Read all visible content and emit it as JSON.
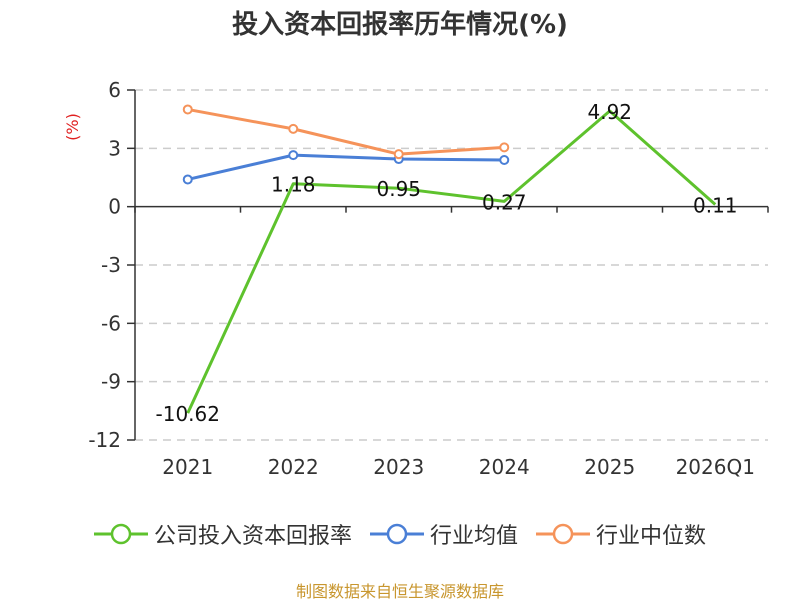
{
  "title": "投入资本回报率历年情况(%)",
  "source": "制图数据来自恒生聚源数据库",
  "chart_data": {
    "type": "line",
    "title": "投入资本回报率历年情况(%)",
    "ylabel": "(%)",
    "categories": [
      "2021",
      "2022",
      "2023",
      "2024",
      "2025",
      "2026Q1"
    ],
    "ylim": [
      -12,
      6
    ],
    "yticks": [
      6,
      3,
      0,
      -3,
      -6,
      -9,
      -12
    ],
    "grid": true,
    "legend_position": "bottom",
    "series": [
      {
        "name": "公司投入资本回报率",
        "color": "#5ec22d",
        "values": [
          -10.62,
          1.18,
          0.95,
          0.27,
          4.92,
          0.11
        ],
        "labels": [
          "-10.62",
          "1.18",
          "0.95",
          "0.27",
          "4.92",
          "0.11"
        ],
        "show_markers": false
      },
      {
        "name": "行业均值",
        "color": "#4a7fd6",
        "values": [
          1.4,
          2.65,
          2.45,
          2.4,
          null,
          null
        ],
        "show_markers": true
      },
      {
        "name": "行业中位数",
        "color": "#f5935a",
        "values": [
          5.0,
          4.0,
          2.7,
          3.05,
          null,
          null
        ],
        "show_markers": true
      }
    ]
  }
}
